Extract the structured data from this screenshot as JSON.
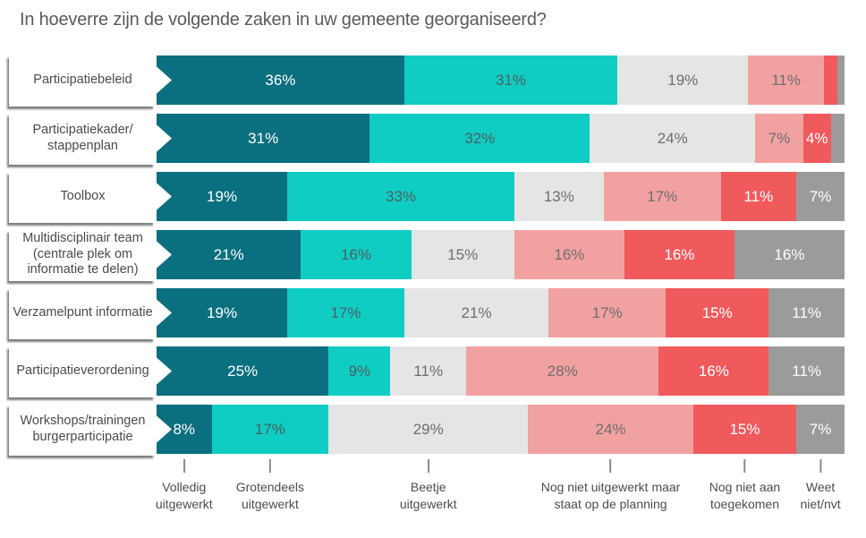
{
  "title": "In hoeverre zijn de volgende zaken in uw gemeente georganiseerd?",
  "chart_data": {
    "type": "bar",
    "subtype": "horizontal-stacked",
    "title": "In hoeverre zijn de volgende zaken in uw gemeente georganiseerd?",
    "unit": "%",
    "xlim": [
      0,
      100
    ],
    "value_label_min": 4,
    "legend_position": "bottom",
    "categories": [
      "Participatiebeleid",
      "Participatiekader/stappenplan",
      "Toolbox",
      "Multidisciplinair team (centrale plek om informatie te delen)",
      "Verzamelpunt informatie",
      "Participatieverordening",
      "Workshops/trainingen burgerparticipatie"
    ],
    "category_lines": [
      [
        "Participatiebeleid"
      ],
      [
        "Participatiekader/",
        "stappenplan"
      ],
      [
        "Toolbox"
      ],
      [
        "Multidisciplinair team",
        "(centrale plek om",
        "informatie te delen)"
      ],
      [
        "Verzamelpunt informatie"
      ],
      [
        "Participatieverordening"
      ],
      [
        "Workshops/trainingen",
        "burgerparticipatie"
      ]
    ],
    "series": [
      {
        "name": "Volledig uitgewerkt",
        "name_lines": [
          "Volledig",
          "uitgewerkt"
        ],
        "color": "#0a6f7e",
        "label_color": "#ffffff",
        "values": [
          36,
          31,
          19,
          21,
          19,
          25,
          8
        ]
      },
      {
        "name": "Grotendeels uitgewerkt",
        "name_lines": [
          "Grotendeels",
          "uitgewerkt"
        ],
        "color": "#10cdc4",
        "label_color": "#4b5f60",
        "values": [
          31,
          32,
          33,
          16,
          17,
          9,
          17
        ]
      },
      {
        "name": "Beetje uitgewerkt",
        "name_lines": [
          "Beetje",
          "uitgewerkt"
        ],
        "color": "#e5e5e5",
        "label_color": "#6e6e6e",
        "values": [
          19,
          24,
          13,
          15,
          21,
          11,
          29
        ]
      },
      {
        "name": "Nog niet uitgewerkt maar staat op de planning",
        "name_lines": [
          "Nog niet uitgewerkt maar",
          "staat op de planning"
        ],
        "color": "#f2a1a1",
        "label_color": "#6e6e6e",
        "values": [
          11,
          7,
          17,
          16,
          17,
          28,
          24
        ]
      },
      {
        "name": "Nog niet aan toegekomen",
        "name_lines": [
          "Nog niet aan",
          "toegekomen"
        ],
        "color": "#f05a5d",
        "label_color": "#ffffff",
        "values": [
          2,
          4,
          11,
          16,
          15,
          16,
          15
        ]
      },
      {
        "name": "Weet niet/nvt",
        "name_lines": [
          "Weet",
          "niet/nvt"
        ],
        "color": "#9b9b9b",
        "label_color": "#ffffff",
        "values": [
          1,
          2,
          7,
          16,
          11,
          11,
          7
        ]
      }
    ]
  }
}
